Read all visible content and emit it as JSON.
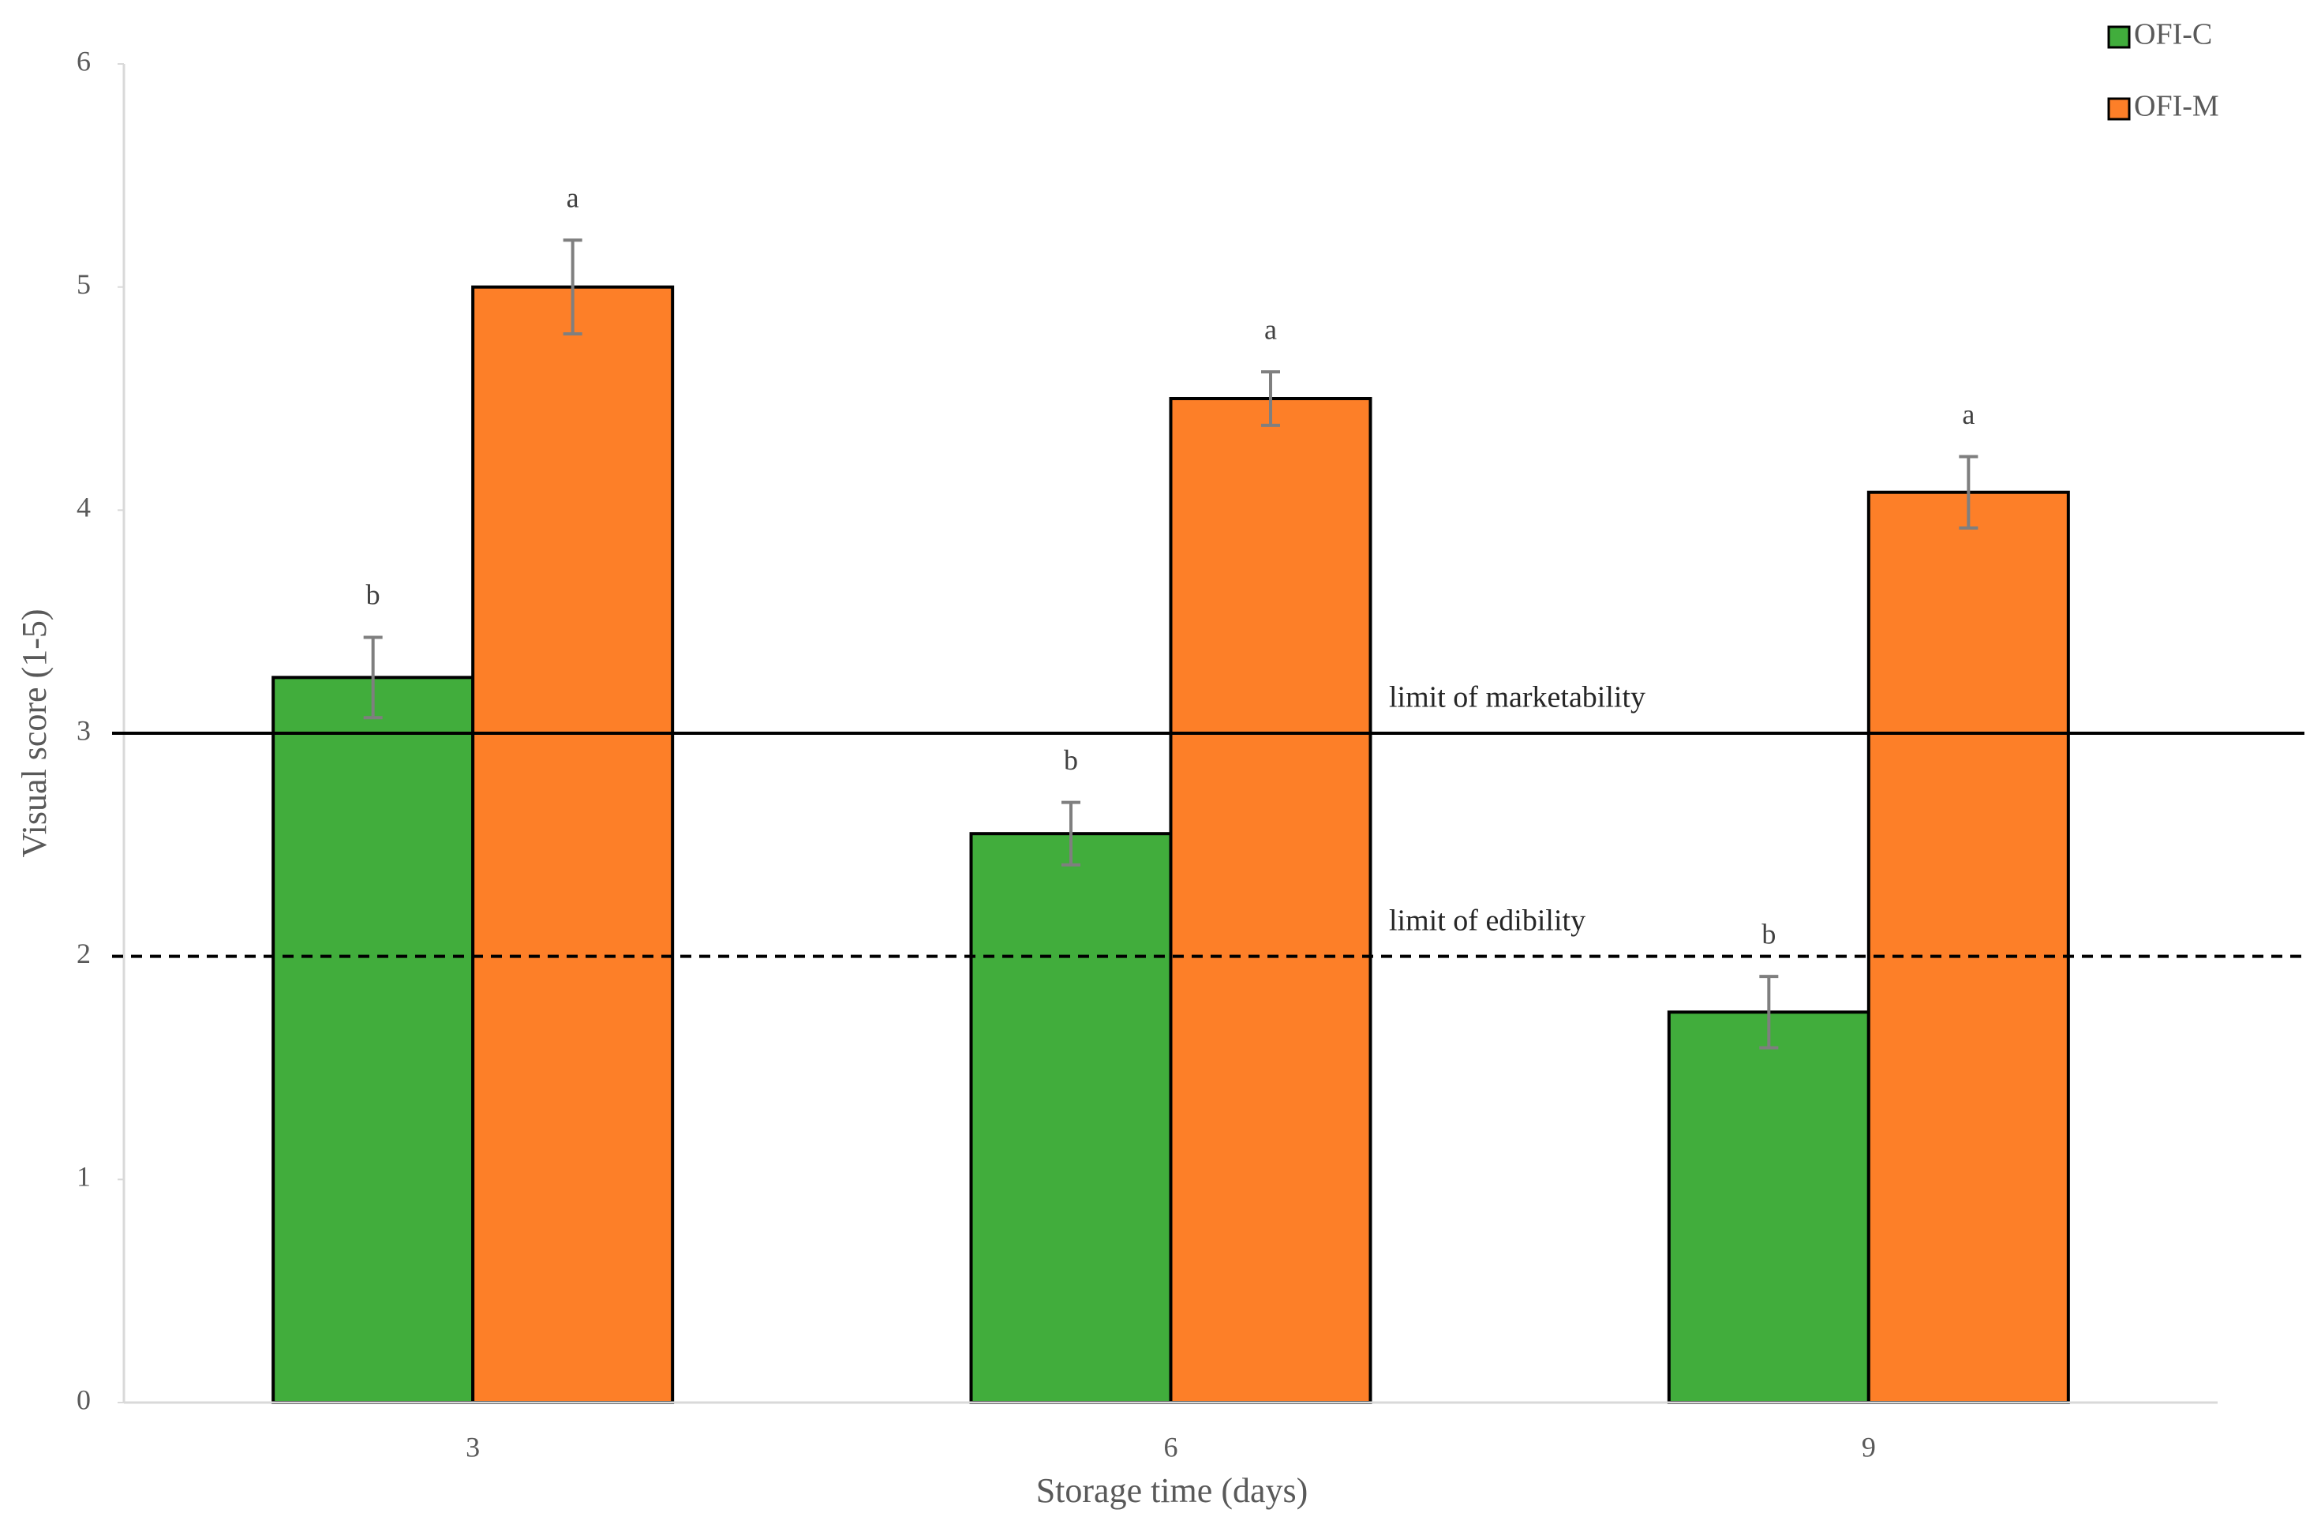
{
  "chart_data": {
    "type": "bar",
    "x_label": "Storage time (days)",
    "y_label": "Visual score (1-5)",
    "categories": [
      "3",
      "6",
      "9"
    ],
    "series": [
      {
        "name": "OFI-C",
        "color": "#41ad3c",
        "values": [
          3.25,
          2.55,
          1.75
        ],
        "errors": [
          0.18,
          0.14,
          0.16
        ],
        "letters": [
          "b",
          "b",
          "b"
        ]
      },
      {
        "name": "OFI-M",
        "color": "#fd7f28",
        "values": [
          5.0,
          4.5,
          4.08
        ],
        "errors": [
          0.21,
          0.12,
          0.16
        ],
        "letters": [
          "a",
          "a",
          "a"
        ]
      }
    ],
    "ylim": [
      0,
      6
    ],
    "yticks": [
      0,
      1,
      2,
      3,
      4,
      5,
      6
    ],
    "reference_lines": [
      {
        "value": 3,
        "label": "limit of marketability",
        "style": "solid"
      },
      {
        "value": 2,
        "label": "limit of edibility",
        "style": "dashed"
      }
    ],
    "legend": "top-right"
  }
}
